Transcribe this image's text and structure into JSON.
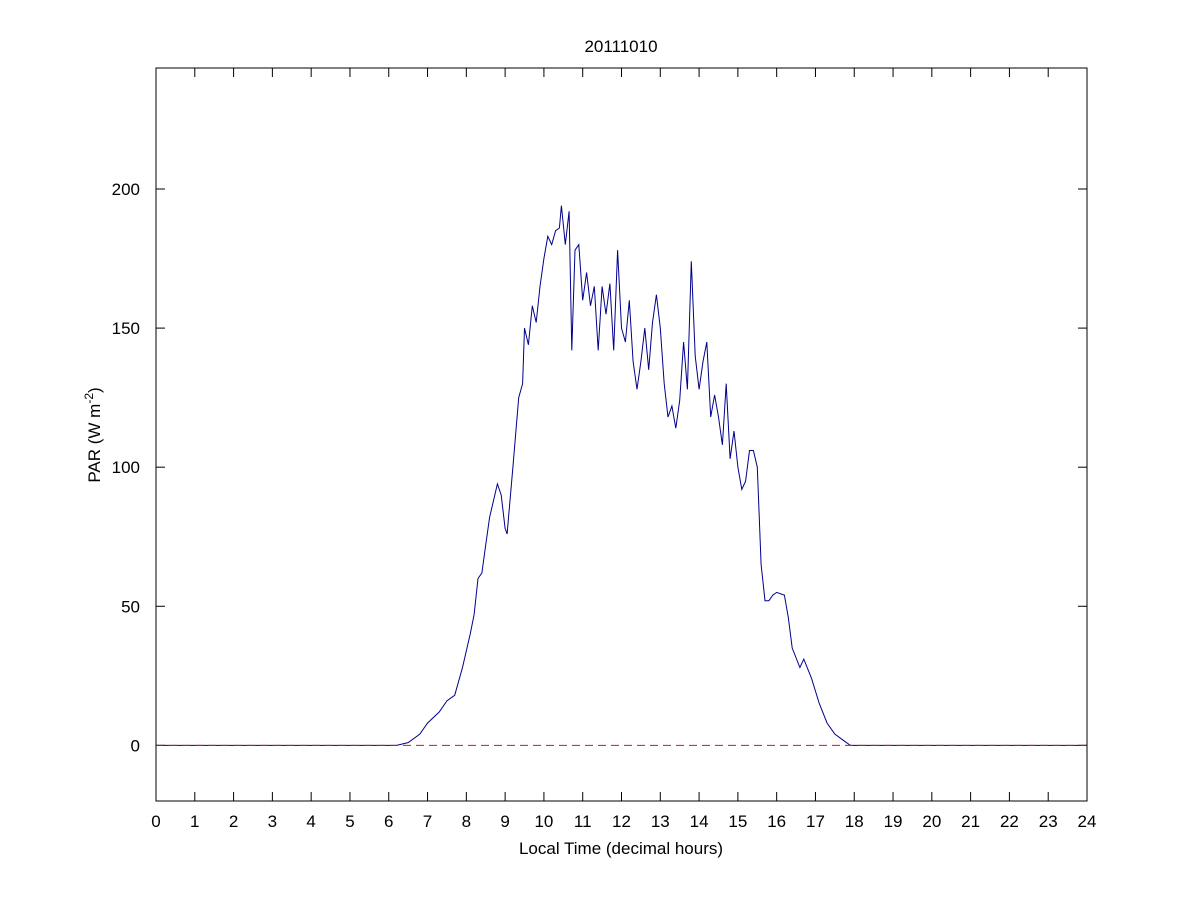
{
  "chart_data": {
    "type": "line",
    "title": "20111010",
    "xlabel": "Local Time (decimal hours)",
    "ylabel": [
      "PAR (W m",
      "-2",
      ")"
    ],
    "xlim": [
      0,
      24
    ],
    "ylim": [
      -20,
      243.5
    ],
    "xticks": [
      0,
      1,
      2,
      3,
      4,
      5,
      6,
      7,
      8,
      9,
      10,
      11,
      12,
      13,
      14,
      15,
      16,
      17,
      18,
      19,
      20,
      21,
      22,
      23,
      24
    ],
    "yticks": [
      0,
      50,
      100,
      150,
      200
    ],
    "reference_line": {
      "value": 0,
      "color": "#ff0000",
      "style": "dashed"
    },
    "series": [
      {
        "color": "#00008b",
        "x": [
          0,
          6.2,
          6.5,
          6.8,
          7.0,
          7.3,
          7.5,
          7.7,
          7.9,
          8.1,
          8.2,
          8.3,
          8.4,
          8.5,
          8.6,
          8.7,
          8.8,
          8.9,
          9.0,
          9.05,
          9.2,
          9.35,
          9.45,
          9.5,
          9.6,
          9.7,
          9.8,
          9.9,
          10.0,
          10.1,
          10.2,
          10.3,
          10.4,
          10.45,
          10.55,
          10.65,
          10.72,
          10.8,
          10.9,
          11.0,
          11.1,
          11.2,
          11.3,
          11.4,
          11.5,
          11.6,
          11.7,
          11.8,
          11.9,
          12.0,
          12.1,
          12.2,
          12.3,
          12.4,
          12.5,
          12.6,
          12.7,
          12.8,
          12.9,
          13.0,
          13.1,
          13.2,
          13.3,
          13.4,
          13.5,
          13.6,
          13.7,
          13.8,
          13.9,
          14.0,
          14.1,
          14.2,
          14.3,
          14.4,
          14.5,
          14.6,
          14.7,
          14.8,
          14.9,
          15.0,
          15.1,
          15.2,
          15.3,
          15.4,
          15.5,
          15.6,
          15.7,
          15.8,
          15.9,
          16.0,
          16.2,
          16.3,
          16.4,
          16.6,
          16.7,
          16.9,
          17.1,
          17.3,
          17.5,
          17.7,
          17.9,
          24
        ],
        "values": [
          0,
          0,
          1,
          4,
          8,
          12,
          16,
          18,
          28,
          40,
          47,
          60,
          62,
          72,
          82,
          88,
          94,
          90,
          78,
          76,
          100,
          125,
          130,
          150,
          144,
          158,
          152,
          165,
          175,
          183,
          180,
          185,
          186,
          194,
          180,
          192,
          142,
          178,
          180,
          160,
          170,
          158,
          165,
          142,
          165,
          155,
          166,
          142,
          178,
          150,
          145,
          160,
          138,
          128,
          138,
          150,
          135,
          152,
          162,
          150,
          130,
          118,
          122,
          114,
          124,
          145,
          128,
          174,
          140,
          128,
          138,
          145,
          118,
          126,
          118,
          108,
          130,
          103,
          113,
          100,
          92,
          95,
          106,
          106,
          100,
          65,
          52,
          52,
          54,
          55,
          54,
          46,
          35,
          28,
          31,
          24,
          15,
          8,
          4,
          2,
          0,
          0
        ]
      }
    ]
  }
}
